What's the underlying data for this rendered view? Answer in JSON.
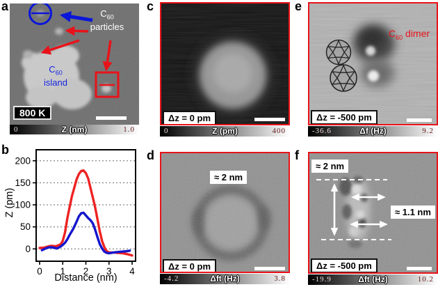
{
  "colors": {
    "annotation_red": "#e8131a",
    "annotation_blue": "#0a16d8",
    "series_red": "#ee2222",
    "series_blue": "#1515cc"
  },
  "panels": {
    "a": {
      "label": "a",
      "particles_label": {
        "base": "C",
        "sub": "60",
        "word": "particles"
      },
      "island_label": {
        "base": "C",
        "sub": "60",
        "word": "island"
      },
      "temperature_badge": "800 K",
      "colorbar": {
        "min": "0",
        "title": "Z (nm)",
        "max": "1.0"
      }
    },
    "b": {
      "label": "b"
    },
    "c": {
      "label": "c",
      "tip_offset": "Δz = 0 pm",
      "colorbar": {
        "min": "0",
        "title": "Z (pm)",
        "max": "400"
      }
    },
    "d": {
      "label": "d",
      "size_annotation": "≈ 2 nm",
      "tip_offset": "Δz = 0 pm",
      "colorbar": {
        "min": "-4.2",
        "title": "Δft (Hz)",
        "max": "3.8"
      }
    },
    "e": {
      "label": "e",
      "dimer_label": {
        "base": "C",
        "sub": "60",
        "word": "dimer"
      },
      "tip_offset": "Δz = -500 pm",
      "colorbar": {
        "min": "-36.6",
        "title": "Δf (Hz)",
        "max": "9.2"
      }
    },
    "f": {
      "label": "f",
      "height_annotation": "≈ 2 nm",
      "width_annotation": "≈ 1.1 nm",
      "tip_offset": "Δz = -500 pm",
      "colorbar": {
        "min": "-19.9",
        "title": "Δft (Hz)",
        "max": "10.2"
      }
    }
  },
  "chart_data": {
    "type": "line",
    "title": "",
    "xlabel": "Distance (nm)",
    "ylabel": "Z (pm)",
    "xlim": [
      -0.15,
      4.15
    ],
    "ylim": [
      -28,
      225
    ],
    "xticks": [
      0,
      1,
      2,
      3,
      4
    ],
    "yticks": [
      0,
      50,
      100,
      150,
      200
    ],
    "grid": "horizontal dashed lines at yticks",
    "legend": "none",
    "series": [
      {
        "name": "island line profile (red)",
        "color": "#ee2222",
        "x": [
          0,
          0.2,
          0.4,
          0.5,
          0.7,
          0.9,
          1.0,
          1.1,
          1.2,
          1.4,
          1.6,
          1.7,
          1.8,
          1.9,
          2.0,
          2.1,
          2.2,
          2.4,
          2.5,
          2.6,
          2.7,
          2.8,
          2.9,
          3.0,
          3.2,
          3.4,
          3.6,
          3.8,
          4.0
        ],
        "y": [
          2,
          3,
          6,
          7,
          6,
          10,
          18,
          38,
          70,
          120,
          158,
          170,
          177,
          178,
          172,
          160,
          138,
          95,
          68,
          40,
          18,
          4,
          -5,
          -8,
          -8,
          -9,
          -10,
          -12,
          -15
        ]
      },
      {
        "name": "particle line profile (blue)",
        "color": "#1515cc",
        "x": [
          0.1,
          0.3,
          0.45,
          0.6,
          0.75,
          0.9,
          1.0,
          1.1,
          1.2,
          1.3,
          1.45,
          1.6,
          1.7,
          1.8,
          1.9,
          2.0,
          2.1,
          2.2,
          2.3,
          2.4,
          2.5,
          2.6,
          2.7,
          2.8,
          2.9,
          3.0,
          3.2,
          3.4,
          3.6,
          3.8,
          3.9
        ],
        "y": [
          -3,
          2,
          4,
          3,
          1,
          5,
          9,
          14,
          22,
          32,
          45,
          62,
          74,
          81,
          82,
          76,
          70,
          65,
          58,
          44,
          27,
          11,
          1,
          -6,
          -9,
          -10,
          -8,
          -7,
          -6,
          -5,
          -4
        ]
      }
    ]
  }
}
